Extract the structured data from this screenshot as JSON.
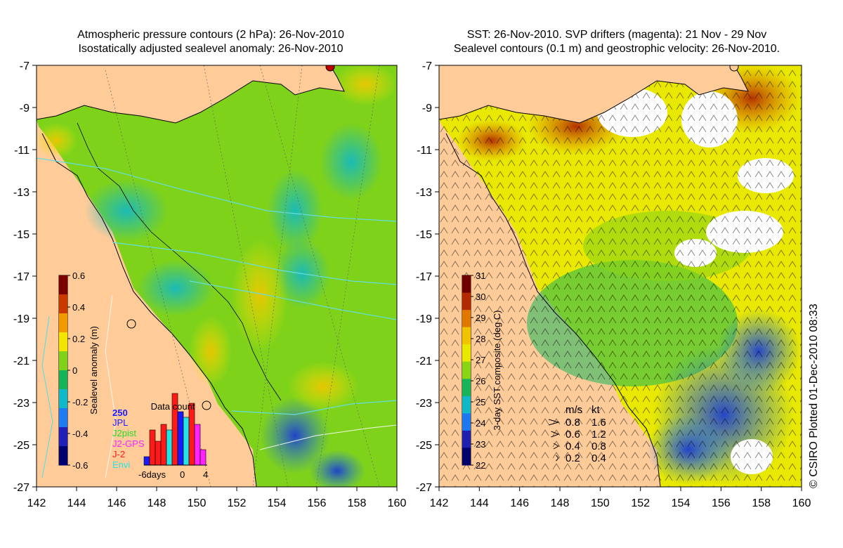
{
  "left_panel": {
    "title_lines": [
      "Atmospheric pressure contours (2 hPa): 26-Nov-2010",
      "Isostatically adjusted sealevel anomaly: 26-Nov-2010"
    ],
    "colorbar": {
      "label": "Sealevel anomaly (m)",
      "ticks": [
        "0.6",
        "0.4",
        "0.2",
        "0",
        "-0.2",
        "-0.4",
        "-0.6"
      ],
      "colors": [
        "#7a0000",
        "#c83a00",
        "#f09a00",
        "#f2e600",
        "#7fd21a",
        "#16b45a",
        "#10b8c8",
        "#1c7cf0",
        "#2020b8",
        "#00006e"
      ]
    },
    "data_count": {
      "title": "Data count",
      "scale_label": "250",
      "x_ticks": [
        "-6days",
        "0",
        "4"
      ],
      "legend": [
        {
          "name": "JPL",
          "color": "#1a1aff"
        },
        {
          "name": "J2pist",
          "color": "#22dd22"
        },
        {
          "name": "J2-GPS",
          "color": "#ff22ff"
        },
        {
          "name": "J-2",
          "color": "#ff1a1a"
        },
        {
          "name": "Envi",
          "color": "#22e5e5"
        }
      ]
    }
  },
  "right_panel": {
    "title_lines": [
      "SST: 26-Nov-2010. SVP drifters (magenta): 21 Nov - 29 Nov",
      "Sealevel contours (0.1 m) and geostrophic velocity: 26-Nov-2010."
    ],
    "colorbar": {
      "label": "3-day SST composite (deg C)",
      "ticks": [
        "31",
        "30",
        "29",
        "28",
        "27",
        "26",
        "25",
        "24",
        "23",
        "22"
      ],
      "colors": [
        "#6e0000",
        "#b42800",
        "#e07800",
        "#f0c400",
        "#e8e800",
        "#8ad416",
        "#18b45a",
        "#10b8c8",
        "#1e78f0",
        "#2020b0",
        "#00006a"
      ]
    },
    "velocity_legend": {
      "header": [
        "m/s",
        "kt"
      ],
      "rows": [
        [
          "0.8",
          "1.6"
        ],
        [
          "0.6",
          "1.2"
        ],
        [
          "0.4",
          "0.8"
        ],
        [
          "0.2",
          "0.4"
        ]
      ]
    }
  },
  "axes": {
    "lat_labels": [
      "-7",
      "-9",
      "-11",
      "-13",
      "-15",
      "-17",
      "-19",
      "-21",
      "-23",
      "-25",
      "-27"
    ],
    "lon_labels": [
      "142",
      "144",
      "146",
      "148",
      "150",
      "152",
      "154",
      "156",
      "158",
      "160"
    ]
  },
  "credit": "© CSIRO Plotted 01-Dec-2010 08:33",
  "colors": {
    "land": "#ffcc99",
    "white": "#ffffff"
  }
}
